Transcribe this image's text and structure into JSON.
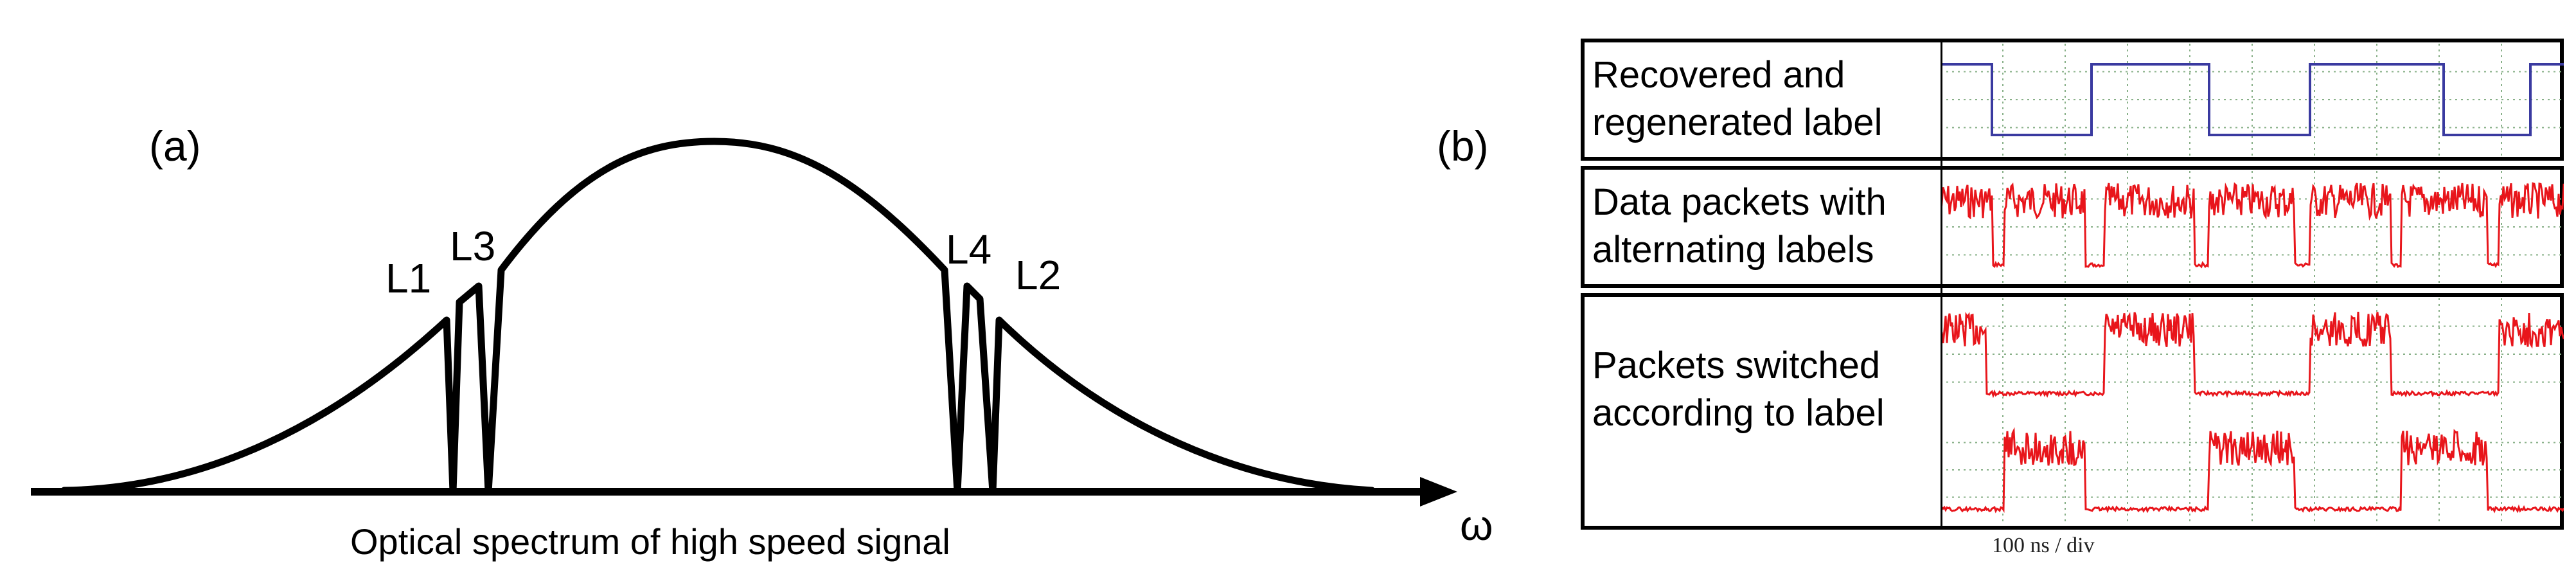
{
  "panel_a": {
    "tag": "(a)",
    "caption": "Optical spectrum of high speed signal",
    "axis_symbol": "ω",
    "notch_labels": [
      "L1",
      "L3",
      "L4",
      "L2"
    ]
  },
  "panel_b": {
    "tag": "(b)",
    "rows": [
      {
        "label": "Recovered and\nregenerated label"
      },
      {
        "label": "Data packets with\nalternating labels"
      },
      {
        "label": "Packets switched\naccording to label"
      }
    ],
    "x_scale": "100 ns / div"
  },
  "colors": {
    "trace_blue": "#3a3aa0",
    "trace_red": "#e8151b",
    "grid": "#88b088",
    "frame": "#000000"
  }
}
